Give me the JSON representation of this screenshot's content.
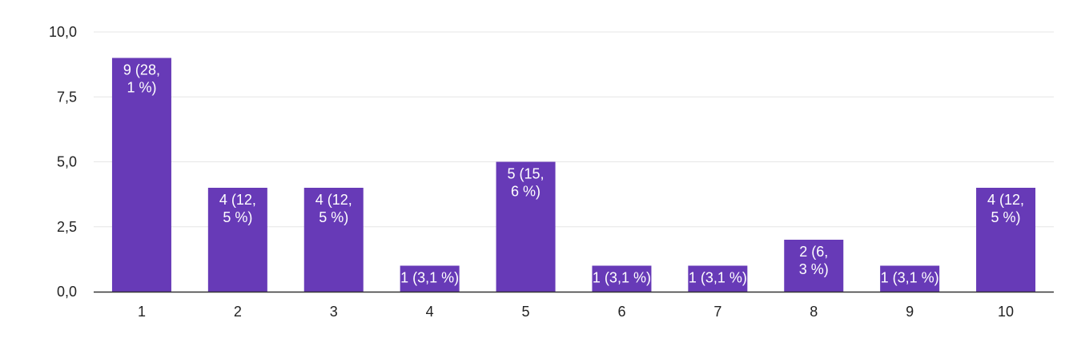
{
  "chart_data": {
    "type": "bar",
    "title": "",
    "xlabel": "",
    "ylabel": "",
    "categories": [
      "1",
      "2",
      "3",
      "4",
      "5",
      "6",
      "7",
      "8",
      "9",
      "10"
    ],
    "values": [
      9,
      4,
      4,
      1,
      5,
      1,
      1,
      2,
      1,
      4
    ],
    "data_labels": [
      [
        "9 (28,",
        "1 %)"
      ],
      [
        "4 (12,",
        "5 %)"
      ],
      [
        "4 (12,",
        "5 %)"
      ],
      [
        "1 (3,1 %)"
      ],
      [
        "5 (15,",
        "6 %)"
      ],
      [
        "1 (3,1 %)"
      ],
      [
        "1 (3,1 %)"
      ],
      [
        "2 (6,",
        "3 %)"
      ],
      [
        "1 (3,1 %)"
      ],
      [
        "4 (12,",
        "5 %)"
      ]
    ],
    "ylim": [
      0,
      10
    ],
    "yticks": [
      0,
      2.5,
      5,
      7.5,
      10
    ],
    "ytick_labels": [
      "0,0",
      "2,5",
      "5,0",
      "7,5",
      "10,0"
    ],
    "grid": true,
    "legend": "none",
    "colors": {
      "bar": "#673AB7",
      "grid": "#e6e6e6",
      "axis": "#333333",
      "label_inside": "#ffffff",
      "label_outside": "#222222"
    }
  }
}
